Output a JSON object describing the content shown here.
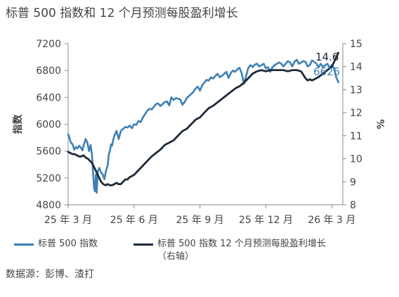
{
  "page": {
    "title": "标普 500 指数和 12 个月预测每股盈利增长",
    "source": "数据源：彭博、渣打"
  },
  "chart_data": {
    "type": "line",
    "title": "标普 500 指数和 12 个月预测每股盈利增长",
    "ylabel": "指数",
    "y2label": "%",
    "ylim": [
      4800,
      7200
    ],
    "y2lim": [
      8,
      15
    ],
    "yticks": [
      4800,
      5200,
      5600,
      6000,
      6400,
      6800,
      7200
    ],
    "y2ticks": [
      8,
      9,
      10,
      11,
      12,
      13,
      14,
      15
    ],
    "xlim": [
      0,
      12.5
    ],
    "xticks": [
      {
        "x": 0,
        "label": "25 年 3 月"
      },
      {
        "x": 3,
        "label": "25 年 6 月"
      },
      {
        "x": 6,
        "label": "25 年 9 月"
      },
      {
        "x": 9,
        "label": "25 年 12 月"
      },
      {
        "x": 12,
        "label": "26 年 3 月"
      }
    ],
    "grid": false,
    "legend_position": "bottom",
    "colors": {
      "sp500": "#3e80b5",
      "eps": "#1c2a3a",
      "axis": "#888888"
    },
    "series": [
      {
        "name": "标普 500 指数",
        "axis": "left",
        "color": "#3e80b5",
        "end_label": "6625",
        "x": [
          0.0,
          0.05,
          0.12,
          0.2,
          0.28,
          0.35,
          0.42,
          0.5,
          0.58,
          0.65,
          0.72,
          0.8,
          0.88,
          0.95,
          1.02,
          1.08,
          1.12,
          1.15,
          1.18,
          1.22,
          1.26,
          1.3,
          1.35,
          1.42,
          1.5,
          1.58,
          1.65,
          1.72,
          1.8,
          1.85,
          1.9,
          1.95,
          2.0,
          2.05,
          2.1,
          2.15,
          2.2,
          2.3,
          2.4,
          2.5,
          2.6,
          2.7,
          2.8,
          2.9,
          3.0,
          3.1,
          3.2,
          3.3,
          3.4,
          3.5,
          3.6,
          3.7,
          3.8,
          3.9,
          4.0,
          4.1,
          4.2,
          4.3,
          4.4,
          4.5,
          4.6,
          4.7,
          4.8,
          4.9,
          5.0,
          5.1,
          5.2,
          5.3,
          5.4,
          5.5,
          5.6,
          5.7,
          5.8,
          5.9,
          6.0,
          6.1,
          6.2,
          6.3,
          6.4,
          6.5,
          6.6,
          6.7,
          6.8,
          6.9,
          7.0,
          7.1,
          7.2,
          7.3,
          7.4,
          7.5,
          7.6,
          7.7,
          7.8,
          7.9,
          8.0,
          8.1,
          8.2,
          8.3,
          8.4,
          8.5,
          8.6,
          8.7,
          8.8,
          8.9,
          9.0,
          9.1,
          9.2,
          9.3,
          9.4,
          9.5,
          9.6,
          9.7,
          9.8,
          9.9,
          10.0,
          10.1,
          10.2,
          10.3,
          10.4,
          10.5,
          10.6,
          10.7,
          10.8,
          10.9,
          11.0,
          11.1,
          11.2,
          11.3,
          11.4,
          11.5,
          11.6,
          11.7,
          11.8,
          11.9,
          12.0,
          12.1,
          12.2,
          12.3
        ],
        "values": [
          5850,
          5810,
          5730,
          5700,
          5620,
          5660,
          5640,
          5680,
          5650,
          5610,
          5700,
          5780,
          5720,
          5600,
          5690,
          5560,
          5350,
          5200,
          5050,
          5000,
          5250,
          4980,
          5300,
          5350,
          5280,
          5250,
          5180,
          5300,
          5390,
          5550,
          5600,
          5700,
          5680,
          5760,
          5830,
          5860,
          5900,
          5780,
          5900,
          5930,
          5960,
          5950,
          5980,
          5940,
          6000,
          5990,
          6050,
          6030,
          6100,
          6150,
          6200,
          6230,
          6220,
          6260,
          6300,
          6310,
          6270,
          6300,
          6330,
          6340,
          6280,
          6400,
          6360,
          6390,
          6380,
          6370,
          6290,
          6330,
          6390,
          6420,
          6450,
          6480,
          6530,
          6560,
          6500,
          6580,
          6620,
          6660,
          6650,
          6700,
          6680,
          6720,
          6750,
          6700,
          6720,
          6750,
          6780,
          6690,
          6760,
          6800,
          6780,
          6820,
          6840,
          6760,
          6600,
          6720,
          6840,
          6880,
          6850,
          6890,
          6900,
          6860,
          6880,
          6900,
          6830,
          6850,
          6780,
          6850,
          6880,
          6900,
          6920,
          6900,
          6860,
          6900,
          6940,
          6920,
          6860,
          6930,
          6960,
          6900,
          6920,
          6940,
          6930,
          6860,
          6880,
          6950,
          6930,
          6900,
          6850,
          6900,
          6850,
          6880,
          6900,
          6840,
          6880,
          6830,
          6700,
          6625
        ]
      },
      {
        "name": "标普 500 指数 12 个月预测每股盈利增长（右轴）",
        "axis": "right",
        "color": "#1c2a3a",
        "end_label": "14.6",
        "x": [
          0.0,
          0.1,
          0.2,
          0.3,
          0.4,
          0.5,
          0.6,
          0.7,
          0.8,
          0.9,
          1.0,
          1.1,
          1.2,
          1.3,
          1.4,
          1.5,
          1.6,
          1.7,
          1.8,
          1.9,
          2.0,
          2.1,
          2.2,
          2.3,
          2.4,
          2.5,
          2.6,
          2.7,
          2.8,
          2.9,
          3.0,
          3.2,
          3.4,
          3.6,
          3.8,
          4.0,
          4.2,
          4.4,
          4.6,
          4.8,
          5.0,
          5.2,
          5.4,
          5.6,
          5.8,
          6.0,
          6.2,
          6.4,
          6.6,
          6.8,
          7.0,
          7.2,
          7.4,
          7.6,
          7.8,
          8.0,
          8.2,
          8.4,
          8.6,
          8.8,
          9.0,
          9.2,
          9.4,
          9.6,
          9.8,
          10.0,
          10.2,
          10.4,
          10.6,
          10.8,
          10.9,
          11.0,
          11.1,
          11.2,
          11.4,
          11.6,
          11.8,
          12.0,
          12.1,
          12.2,
          12.3
        ],
        "values": [
          10.3,
          10.25,
          10.2,
          10.2,
          10.15,
          10.1,
          10.1,
          10.15,
          10.05,
          10.0,
          9.9,
          9.8,
          9.6,
          9.4,
          9.2,
          9.0,
          8.9,
          8.85,
          8.9,
          8.85,
          8.85,
          8.9,
          8.95,
          8.9,
          8.9,
          9.0,
          9.1,
          9.1,
          9.2,
          9.25,
          9.3,
          9.5,
          9.7,
          9.9,
          10.1,
          10.25,
          10.4,
          10.6,
          10.7,
          10.8,
          11.0,
          11.2,
          11.3,
          11.5,
          11.7,
          11.8,
          12.0,
          12.2,
          12.3,
          12.45,
          12.6,
          12.75,
          12.9,
          13.05,
          13.15,
          13.3,
          13.5,
          13.7,
          13.8,
          13.85,
          13.8,
          13.85,
          13.85,
          13.85,
          13.85,
          13.8,
          13.85,
          13.85,
          13.8,
          13.5,
          13.4,
          13.45,
          13.4,
          13.45,
          13.55,
          13.7,
          13.85,
          14.0,
          14.2,
          14.4,
          14.6
        ]
      }
    ]
  }
}
